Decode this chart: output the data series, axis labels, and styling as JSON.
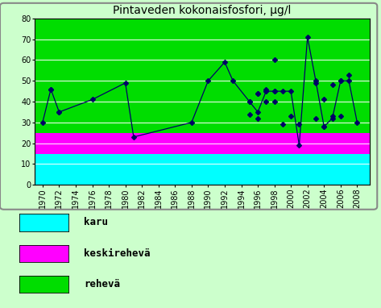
{
  "title": "Pintaveden kokonaisfosfori, μg/l",
  "line_data": {
    "years": [
      1970,
      1971,
      1972,
      1976,
      1980,
      1981,
      1988,
      1990,
      1992,
      1993,
      1995,
      1996,
      1997,
      1998,
      1999,
      2000,
      2001,
      2002,
      2003,
      2004,
      2005,
      2006,
      2007,
      2008
    ],
    "values": [
      30,
      46,
      35,
      41,
      49,
      23,
      30,
      50,
      59,
      50,
      40,
      35,
      45,
      45,
      45,
      45,
      19,
      71,
      50,
      28,
      32,
      50,
      50,
      30
    ]
  },
  "scatter_points": [
    [
      1971,
      46
    ],
    [
      1972,
      35
    ],
    [
      1995,
      40
    ],
    [
      1995,
      34
    ],
    [
      1996,
      32
    ],
    [
      1996,
      44
    ],
    [
      1996,
      44
    ],
    [
      1997,
      40
    ],
    [
      1997,
      45
    ],
    [
      1997,
      46
    ],
    [
      1998,
      40
    ],
    [
      1998,
      45
    ],
    [
      1998,
      60
    ],
    [
      1999,
      29
    ],
    [
      2000,
      33
    ],
    [
      2001,
      29
    ],
    [
      2003,
      49
    ],
    [
      2003,
      32
    ],
    [
      2004,
      41
    ],
    [
      2004,
      28
    ],
    [
      2005,
      48
    ],
    [
      2005,
      33
    ],
    [
      2006,
      50
    ],
    [
      2006,
      33
    ],
    [
      2007,
      53
    ]
  ],
  "ylim": [
    0,
    80
  ],
  "yticks": [
    0,
    10,
    20,
    30,
    40,
    50,
    60,
    70,
    80
  ],
  "xtick_years": [
    1970,
    1972,
    1974,
    1976,
    1978,
    1980,
    1982,
    1984,
    1986,
    1988,
    1990,
    1992,
    1994,
    1996,
    1998,
    2000,
    2002,
    2004,
    2006,
    2008
  ],
  "xlim": [
    1969,
    2009.5
  ],
  "bg_color": "#ccffcc",
  "plot_bg": "#00dd00",
  "band_karu_color": "#00ffff",
  "band_keski_color": "#ff00ff",
  "band_karu_ymin": 0,
  "band_karu_ymax": 15,
  "band_keski_ymin": 15,
  "band_keski_ymax": 25,
  "line_color": "#000066",
  "marker_color": "#000066",
  "grid_color": "#ffffff",
  "legend_labels": [
    "karu",
    "keskirehevä",
    "rehevä"
  ],
  "legend_colors": [
    "#00ffff",
    "#ff00ff",
    "#00dd00"
  ],
  "title_fontsize": 10,
  "legend_fontsize": 9,
  "tick_fontsize": 7
}
